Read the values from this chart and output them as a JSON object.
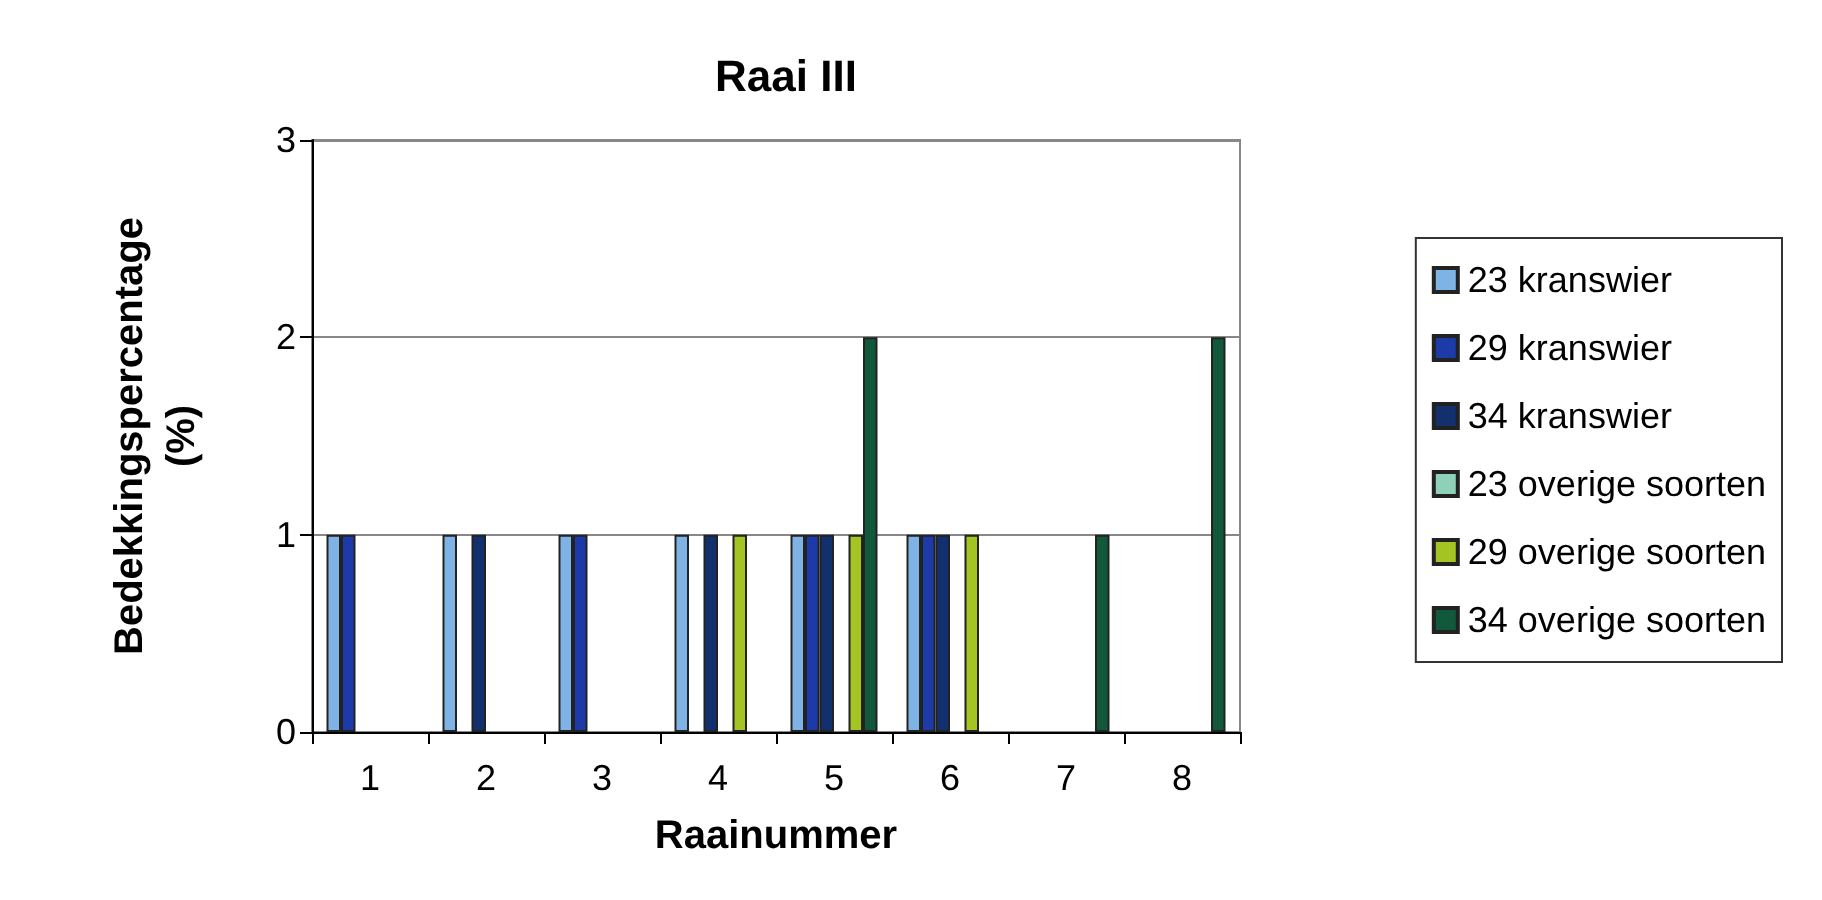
{
  "chart_data": {
    "type": "bar",
    "title": "Raai III",
    "xlabel": "Raainummer",
    "ylabel": "Bedekkingspercentage\n(%)",
    "categories": [
      "1",
      "2",
      "3",
      "4",
      "5",
      "6",
      "7",
      "8"
    ],
    "series": [
      {
        "name": "23 kranswier",
        "color": "#7fb3e6",
        "values": [
          1,
          1,
          1,
          1,
          1,
          1,
          null,
          null
        ]
      },
      {
        "name": "29 kranswier",
        "color": "#1c3aa8",
        "values": [
          1,
          null,
          1,
          null,
          1,
          1,
          null,
          null
        ]
      },
      {
        "name": "34 kranswier",
        "color": "#13306e",
        "values": [
          null,
          1,
          null,
          1,
          1,
          1,
          null,
          null
        ]
      },
      {
        "name": "23 overige soorten",
        "color": "#8fd0b8",
        "values": [
          null,
          null,
          null,
          null,
          null,
          null,
          null,
          null
        ]
      },
      {
        "name": "29 overige soorten",
        "color": "#a4c424",
        "values": [
          null,
          null,
          null,
          1,
          1,
          1,
          null,
          null
        ]
      },
      {
        "name": "34 overige soorten",
        "color": "#12583a",
        "values": [
          null,
          null,
          null,
          null,
          2,
          null,
          1,
          2
        ]
      }
    ],
    "ylim": [
      0,
      3
    ],
    "yticks": [
      0,
      1,
      2,
      3
    ],
    "grid": "y",
    "legend": "right"
  }
}
